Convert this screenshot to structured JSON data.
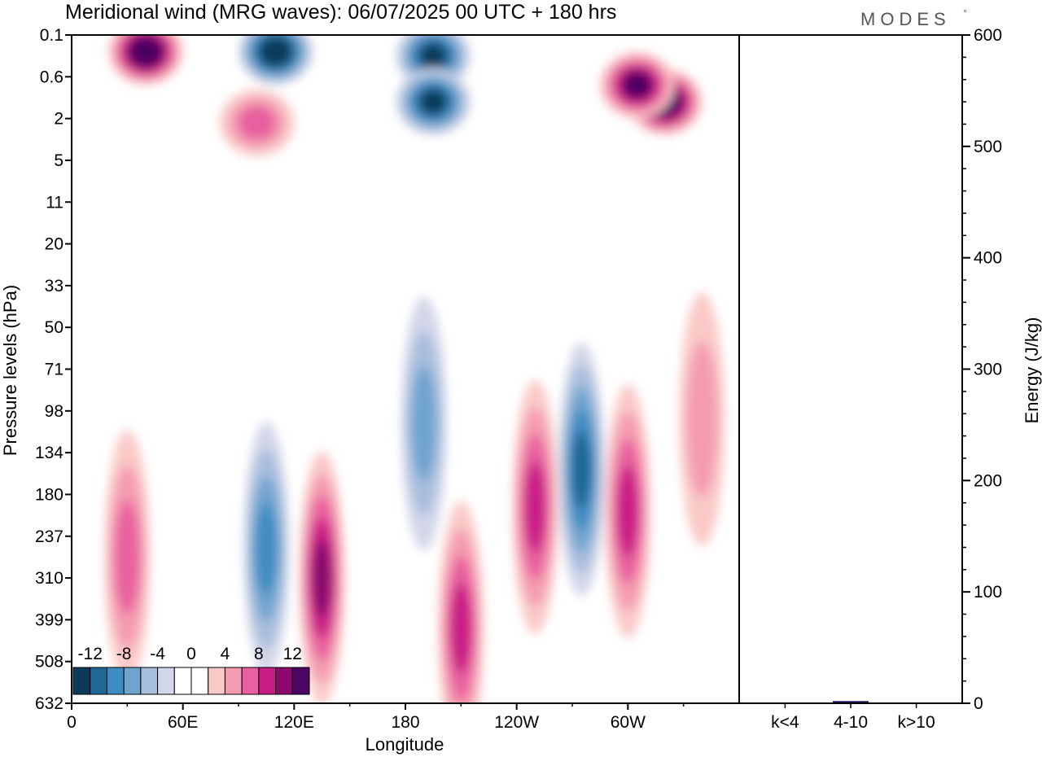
{
  "title": "Meridional wind (MRG waves):  06/07/2025  00 UTC  + 180 hrs",
  "logo": "MODES",
  "logo_mark": "°",
  "chart_data": [
    {
      "type": "heatmap",
      "xlabel": "Longitude",
      "ylabel": "Pressure levels (hPa)",
      "x_ticks": [
        "0",
        "60E",
        "120E",
        "180",
        "120W",
        "60W"
      ],
      "x_tick_degrees": [
        0,
        60,
        120,
        180,
        240,
        300
      ],
      "xlim": [
        0,
        360
      ],
      "y_ticks": [
        "0.1",
        "0.6",
        "2",
        "5",
        "11",
        "20",
        "33",
        "50",
        "71",
        "98",
        "134",
        "180",
        "237",
        "310",
        "399",
        "508",
        "632"
      ],
      "colorbar": {
        "tick_labels": [
          "-12",
          "-8",
          "-4",
          "0",
          "4",
          "8",
          "12"
        ],
        "tick_values": [
          -12,
          -8,
          -4,
          0,
          4,
          8,
          12
        ],
        "colors": [
          "#0b3a5a",
          "#1f6895",
          "#3f8cc2",
          "#6fa4cf",
          "#a7bedd",
          "#d2d6e8",
          "#ffffff",
          "#ffffff",
          "#f9c9c7",
          "#f49bb1",
          "#e8609f",
          "#c91d86",
          "#8b0a6e",
          "#4b0563"
        ]
      },
      "features": [
        {
          "lon": 40,
          "level_index": 0.4,
          "value": 14
        },
        {
          "lon": 110,
          "level_index": 0.4,
          "value": -14
        },
        {
          "lon": 195,
          "level_index": 0.5,
          "value": -13
        },
        {
          "lon": 195,
          "level_index": 1.6,
          "value": -13
        },
        {
          "lon": 320,
          "level_index": 1.6,
          "value": 14
        },
        {
          "lon": 305,
          "level_index": 1.2,
          "value": 12
        },
        {
          "lon": 100,
          "level_index": 2.1,
          "value": 6
        },
        {
          "lon": 105,
          "level_index": 12.3,
          "value": -9
        },
        {
          "lon": 135,
          "level_index": 13.0,
          "value": 10
        },
        {
          "lon": 210,
          "level_index": 14.2,
          "value": 8
        },
        {
          "lon": 250,
          "level_index": 11.3,
          "value": 8
        },
        {
          "lon": 275,
          "level_index": 10.4,
          "value": -11
        },
        {
          "lon": 300,
          "level_index": 11.4,
          "value": 9
        },
        {
          "lon": 30,
          "level_index": 12.5,
          "value": 6
        },
        {
          "lon": 340,
          "level_index": 9.2,
          "value": 5
        },
        {
          "lon": 190,
          "level_index": 9.3,
          "value": -6
        }
      ]
    },
    {
      "type": "bar",
      "categories": [
        "k<4",
        "4-10",
        "k>10"
      ],
      "values": [
        0.3,
        2.0,
        0.3
      ],
      "ylabel": "Energy (J/kg)",
      "y_ticks": [
        "0",
        "100",
        "200",
        "300",
        "400",
        "500",
        "600"
      ],
      "ylim": [
        0,
        600
      ],
      "bar_color": "#1a1a60"
    }
  ]
}
